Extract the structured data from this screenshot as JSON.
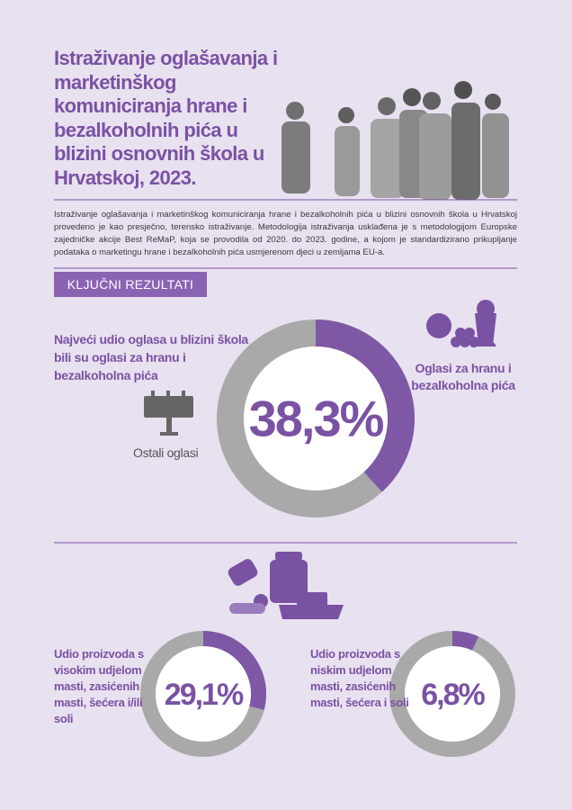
{
  "header": {
    "title": "Istraživanje oglašavanja i marketinškog komuniciranja hrane i bezalkoholnih pića u blizini osnovnih škola u Hrvatskoj, 2023.",
    "description": "Istraživanje oglašavanja i marketinškog komuniciranja hrane i bezalkoholnih pića u blizini osnovnih škola u Hrvatskoj provedeno je kao presječno, terensko istraživanje. Metodologija istraživanja usklađena je s metodologijom Europske zajedničke akcije Best ReMaP, koja se provodila od 2020. do 2023. godine, a kojom je standardizirano prikupljanje podataka o marketingu hrane i bezalkoholnih pića usmjerenom djeci u zemljama EU-a."
  },
  "section_label": "KLJUČNI REZULTATI",
  "main_result": {
    "heading": "Najveći udio oglasa u blizini škola bili su oglasi za hranu i bezalkoholna pića",
    "value": 38.3,
    "value_label": "38,3%",
    "highlight_label": "Oglasi za hranu i bezalkoholna pića",
    "other_label": "Ostali oglasi"
  },
  "products": [
    {
      "label": "Udio proizvoda s visokim udjelom masti, zasićenih masti, šećera i/ili soli",
      "value": 29.1,
      "value_label": "29,1%"
    },
    {
      "label": "Udio proizvoda s niskim udjelom masti, zasićenih masti, šećera i soli",
      "value": 6.8,
      "value_label": "6,8%"
    }
  ]
}
